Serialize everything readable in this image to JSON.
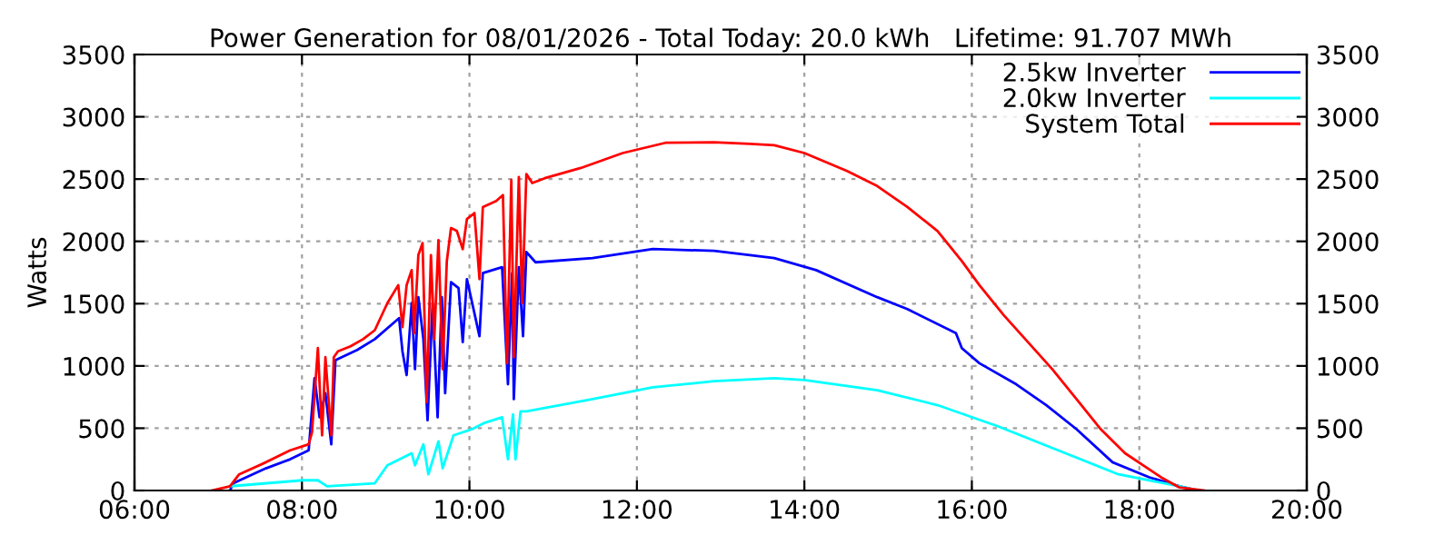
{
  "chart_data": {
    "type": "line",
    "title": "Power Generation for 08/01/2026 - Total Today: 20.0 kWh   Lifetime: 91.707 MWh",
    "ylabel": "Watts",
    "xlim": [
      6,
      20
    ],
    "xticks": [
      {
        "value": 6,
        "label": "06:00"
      },
      {
        "value": 8,
        "label": "08:00"
      },
      {
        "value": 10,
        "label": "10:00"
      },
      {
        "value": 12,
        "label": "12:00"
      },
      {
        "value": 14,
        "label": "14:00"
      },
      {
        "value": 16,
        "label": "16:00"
      },
      {
        "value": 18,
        "label": "18:00"
      },
      {
        "value": 20,
        "label": "20:00"
      }
    ],
    "ylim": [
      0,
      3500
    ],
    "yticks": [
      0,
      500,
      1000,
      1500,
      2000,
      2500,
      3000,
      3500
    ],
    "y2lim": [
      0,
      3500
    ],
    "y2ticks": [
      0,
      500,
      1000,
      1500,
      2000,
      2500,
      3000,
      3500
    ],
    "grid": true,
    "legend": "top right",
    "line_style": "solid",
    "marker": "none",
    "series": [
      {
        "name": "2.5kw Inverter",
        "color": "#0000ff",
        "x": [
          7.14,
          7.18,
          7.57,
          7.86,
          8.08,
          8.15,
          8.21,
          8.28,
          8.35,
          8.4,
          8.66,
          8.87,
          9.16,
          9.2,
          9.25,
          9.31,
          9.35,
          9.39,
          9.45,
          9.5,
          9.56,
          9.62,
          9.67,
          9.71,
          9.78,
          9.87,
          9.92,
          9.97,
          10.12,
          10.16,
          10.39,
          10.46,
          10.51,
          10.53,
          10.59,
          10.64,
          10.68,
          10.79,
          11.47,
          12.19,
          12.92,
          13.35,
          13.64,
          14.14,
          14.87,
          15.23,
          15.81,
          15.88,
          16.09,
          16.53,
          16.89,
          17.25,
          17.68,
          18.12,
          18.48,
          18.7
        ],
        "values": [
          0,
          58,
          178,
          251,
          323,
          902,
          588,
          781,
          371,
          1046,
          1128,
          1215,
          1384,
          1118,
          926,
          1504,
          974,
          1552,
          1215,
          564,
          1504,
          588,
          1552,
          781,
          1673,
          1625,
          1191,
          1697,
          1239,
          1745,
          1793,
          853,
          1745,
          733,
          1793,
          1239,
          1914,
          1832,
          1866,
          1938,
          1924,
          1890,
          1866,
          1769,
          1552,
          1456,
          1263,
          1143,
          1022,
          853,
          685,
          492,
          227,
          106,
          34,
          0
        ]
      },
      {
        "name": "2.0kw Inverter",
        "color": "#00ffff",
        "x": [
          7.14,
          8.01,
          8.19,
          8.3,
          8.87,
          9.02,
          9.31,
          9.35,
          9.45,
          9.51,
          9.63,
          9.68,
          9.81,
          10.03,
          10.17,
          10.39,
          10.46,
          10.52,
          10.55,
          10.61,
          10.68,
          11.47,
          12.19,
          12.92,
          13.64,
          14.0,
          14.87,
          15.59,
          16.31,
          17.03,
          17.75,
          18.48,
          18.7
        ],
        "values": [
          34,
          82,
          82,
          34,
          58,
          202,
          299,
          202,
          371,
          130,
          395,
          178,
          443,
          492,
          540,
          588,
          251,
          612,
          251,
          636,
          636,
          733,
          829,
          877,
          902,
          887,
          805,
          685,
          516,
          323,
          130,
          34,
          0
        ]
      },
      {
        "name": "System Total",
        "color": "#ff0000",
        "x": [
          6.92,
          7.14,
          7.25,
          7.57,
          7.86,
          8.08,
          8.12,
          8.19,
          8.24,
          8.28,
          8.35,
          8.38,
          8.43,
          8.58,
          8.73,
          8.87,
          9.02,
          9.15,
          9.2,
          9.25,
          9.31,
          9.34,
          9.39,
          9.44,
          9.49,
          9.54,
          9.58,
          9.63,
          9.68,
          9.73,
          9.78,
          9.85,
          9.92,
          9.97,
          10.06,
          10.12,
          10.16,
          10.32,
          10.4,
          10.45,
          10.5,
          10.53,
          10.59,
          10.63,
          10.68,
          10.75,
          10.9,
          11.33,
          11.83,
          12.34,
          12.92,
          13.35,
          13.64,
          14.0,
          14.51,
          14.87,
          15.23,
          15.59,
          15.88,
          16.09,
          16.38,
          16.67,
          16.96,
          17.25,
          17.54,
          17.83,
          18.26,
          18.48,
          18.77
        ],
        "values": [
          0,
          34,
          130,
          227,
          323,
          371,
          468,
          1143,
          443,
          1070,
          443,
          1070,
          1118,
          1157,
          1215,
          1287,
          1504,
          1649,
          1311,
          1649,
          1769,
          1263,
          1890,
          1986,
          709,
          1890,
          1215,
          2010,
          974,
          1841,
          2107,
          2083,
          1938,
          2179,
          2227,
          1697,
          2275,
          2324,
          2372,
          1022,
          2492,
          1070,
          2517,
          1504,
          2541,
          2468,
          2507,
          2589,
          2709,
          2791,
          2796,
          2782,
          2772,
          2709,
          2565,
          2444,
          2276,
          2083,
          1842,
          1649,
          1408,
          1191,
          974,
          733,
          492,
          299,
          106,
          24,
          0
        ]
      }
    ]
  }
}
